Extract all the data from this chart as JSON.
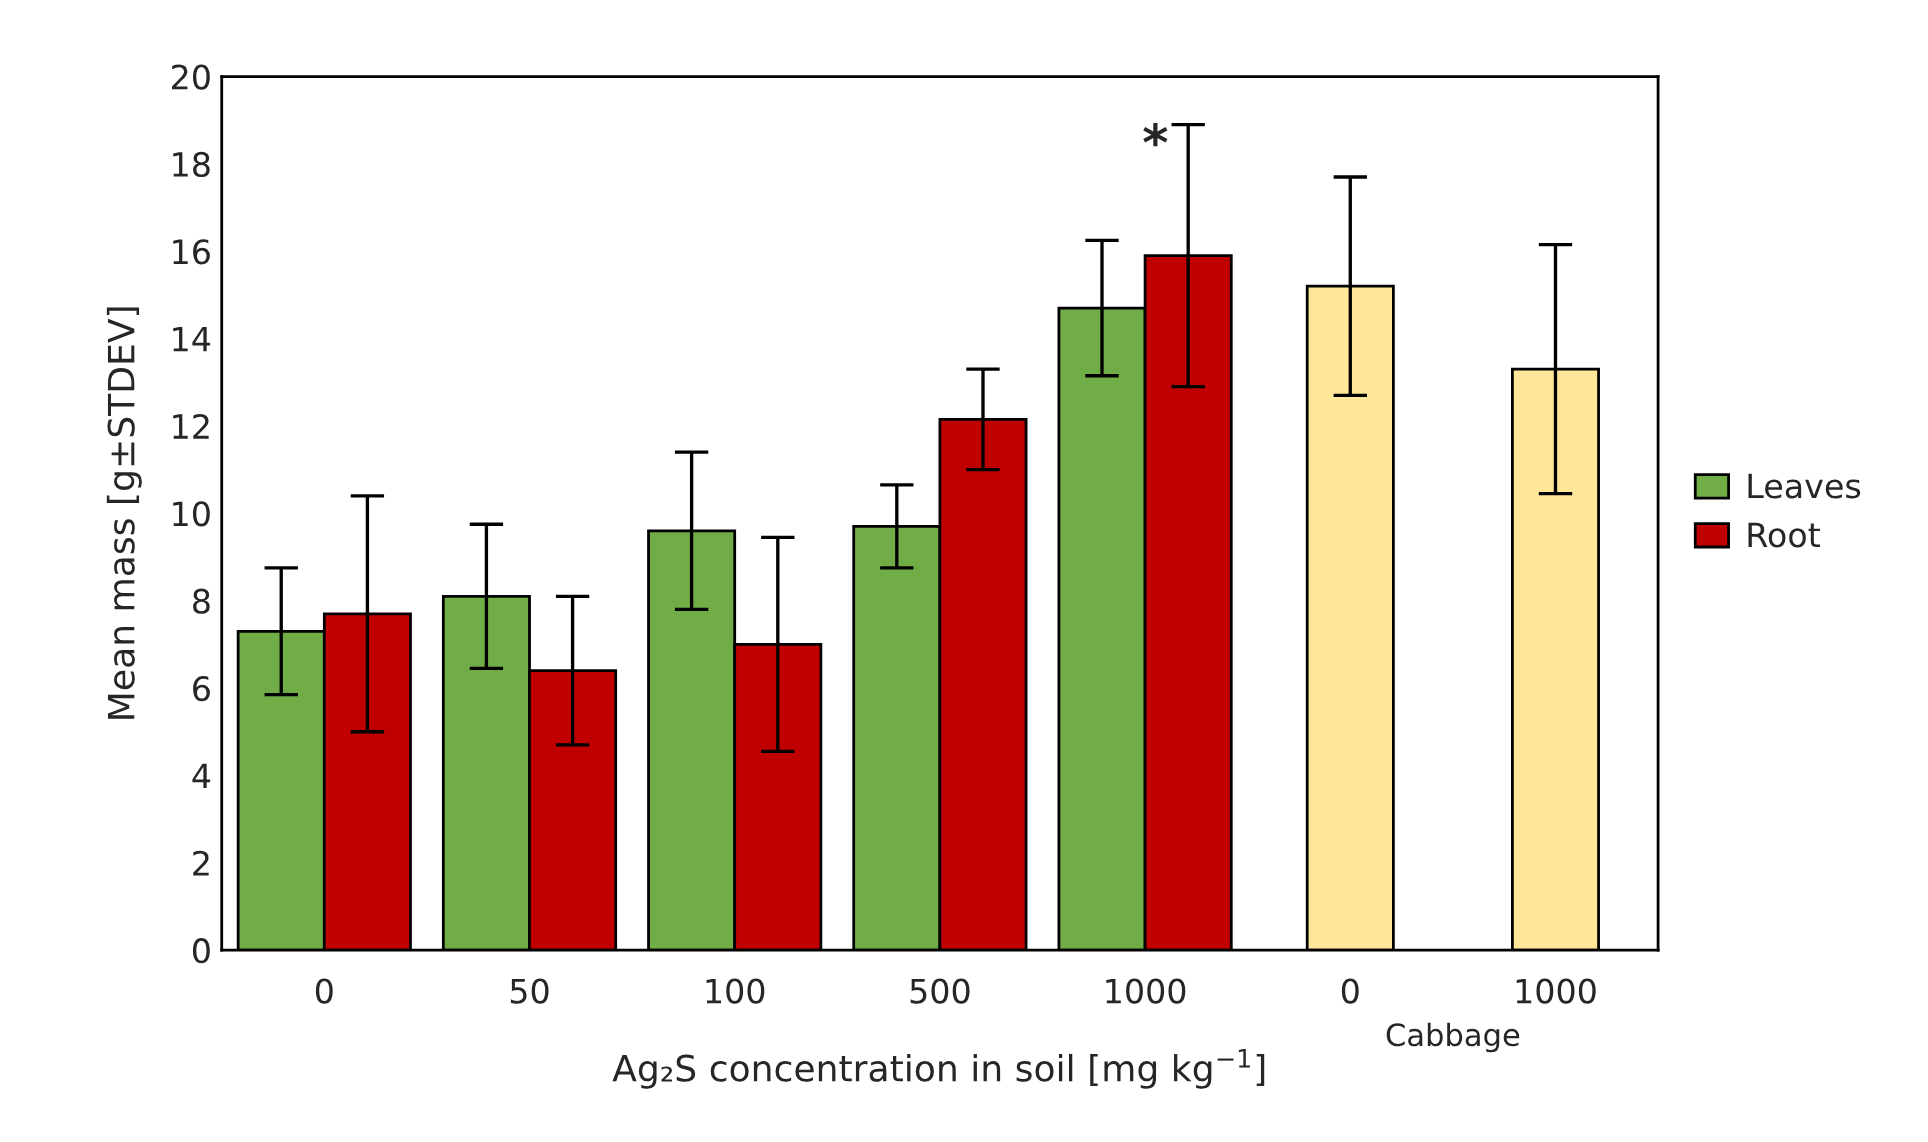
{
  "chart_data": {
    "type": "bar",
    "xlabel": "Ag₂S concentration in soil [mg kg$^{−1}$]",
    "ylabel": "Mean mass [g±STDEV]",
    "categories": [
      "0",
      "50",
      "100",
      "500",
      "1000",
      "0",
      "1000"
    ],
    "series": [
      {
        "name": "Leaves",
        "color": "#70ad47",
        "values": [
          7.3,
          8.1,
          9.6,
          9.7,
          14.7,
          null,
          null
        ],
        "errors": [
          1.45,
          1.65,
          1.8,
          0.95,
          1.55,
          null,
          null
        ]
      },
      {
        "name": "Root",
        "color": "#c00000",
        "values": [
          7.7,
          6.4,
          7.0,
          12.15,
          15.9,
          null,
          null
        ],
        "errors": [
          2.7,
          1.7,
          2.45,
          1.15,
          3.0,
          null,
          null
        ]
      },
      {
        "color": "#ffe699",
        "values": [
          null,
          null,
          null,
          null,
          null,
          15.2,
          13.3
        ],
        "errors": [
          null,
          null,
          null,
          null,
          null,
          2.5,
          2.85
        ]
      }
    ],
    "ylim": [
      0,
      20
    ],
    "yticks": [
      0,
      2,
      4,
      6,
      8,
      10,
      12,
      14,
      16,
      18,
      20
    ],
    "grid": false,
    "legend": "right",
    "annotations": [
      "*",
      "Cabbage"
    ]
  }
}
